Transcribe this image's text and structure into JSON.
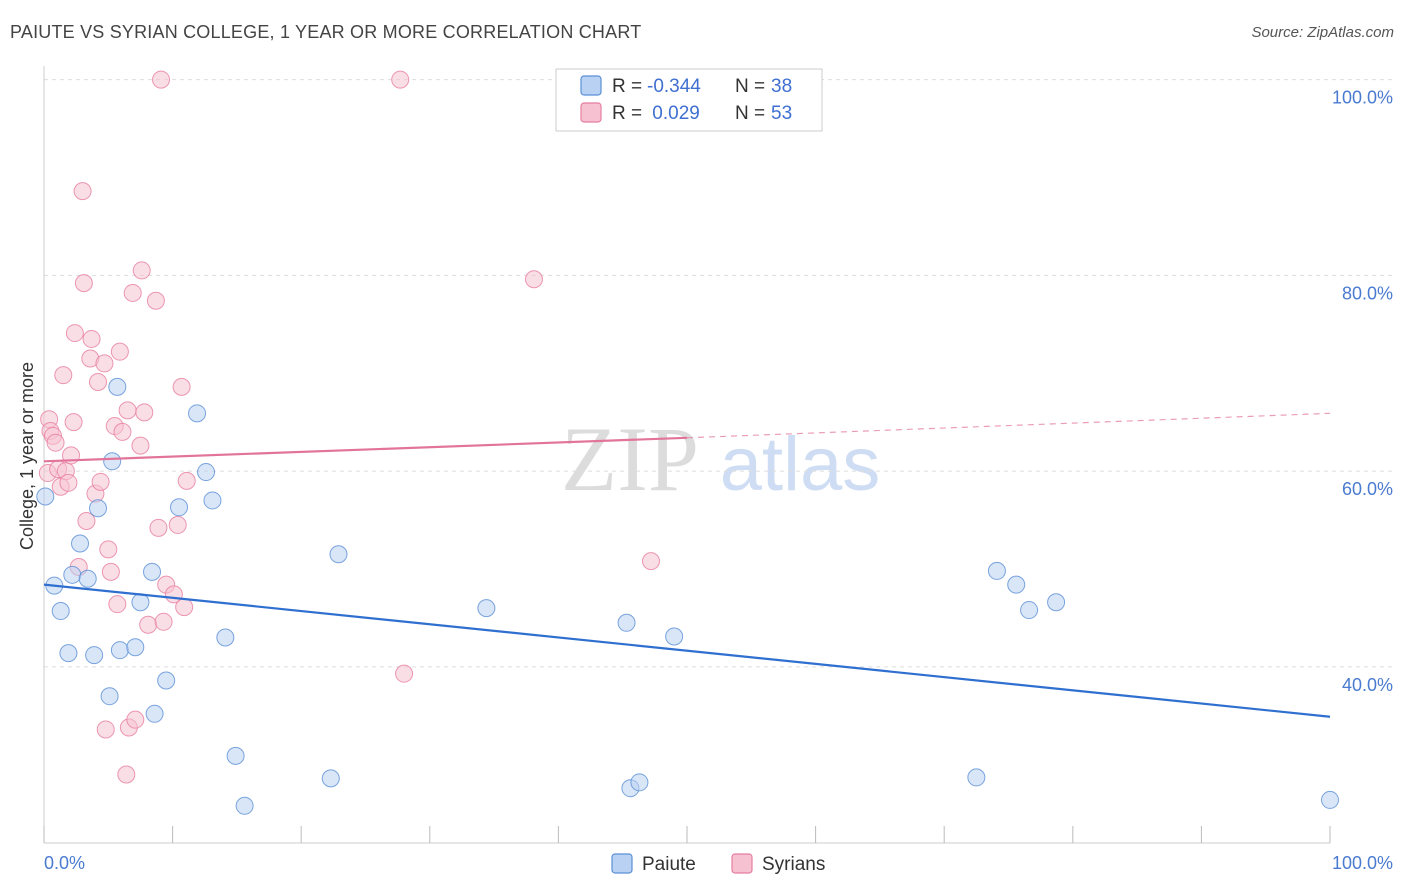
{
  "title": "PAIUTE VS SYRIAN COLLEGE, 1 YEAR OR MORE CORRELATION CHART",
  "source": "Source: ZipAtlas.com",
  "watermark": {
    "zip": "ZIP",
    "atlas": "atlas"
  },
  "colors": {
    "paiute": "#5b8fd6",
    "paiute_fill": "#b9d2f3",
    "syrians": "#e77ea0",
    "syrians_fill": "#f6c2d2",
    "blue_line": "#2f6fcf",
    "pink_line": "#e2739a"
  },
  "legend": {
    "rows": [
      {
        "r_label": "R = ",
        "r_value": "-0.344",
        "n_label": "N = ",
        "n_value": "38",
        "series": "paiute"
      },
      {
        "r_label": "R = ",
        "r_value": " 0.029",
        "n_label": "N = ",
        "n_value": "53",
        "series": "syrians"
      }
    ]
  },
  "chart_data": {
    "type": "scatter",
    "ylabel": "College, 1 year or more",
    "xlim": [
      0,
      100
    ],
    "ylim": [
      22,
      102
    ],
    "x_tick_labels": [
      {
        "value": 0,
        "label": "0.0%"
      },
      {
        "value": 100,
        "label": "100.0%"
      }
    ],
    "y_tick_labels": [
      {
        "value": 100,
        "label": "100.0%"
      },
      {
        "value": 80,
        "label": "80.0%"
      },
      {
        "value": 60,
        "label": "60.0%"
      },
      {
        "value": 40,
        "label": "40.0%"
      }
    ],
    "y_grid": [
      100,
      80,
      60,
      40
    ],
    "legend_position": "bottom",
    "series": [
      {
        "name": "Paiute",
        "points": [
          [
            0.1,
            57.4
          ],
          [
            0.8,
            48.3
          ],
          [
            1.3,
            45.7
          ],
          [
            1.9,
            41.4
          ],
          [
            2.2,
            49.4
          ],
          [
            2.8,
            52.6
          ],
          [
            3.4,
            49.0
          ],
          [
            3.9,
            41.2
          ],
          [
            5.1,
            37.0
          ],
          [
            5.9,
            41.7
          ],
          [
            5.7,
            68.6
          ],
          [
            7.1,
            42.0
          ],
          [
            5.3,
            61.0
          ],
          [
            4.2,
            56.2
          ],
          [
            7.5,
            46.6
          ],
          [
            8.4,
            49.7
          ],
          [
            8.6,
            35.2
          ],
          [
            9.5,
            38.6
          ],
          [
            10.5,
            56.3
          ],
          [
            11.9,
            65.9
          ],
          [
            12.6,
            59.9
          ],
          [
            13.1,
            57.0
          ],
          [
            14.1,
            43.0
          ],
          [
            14.9,
            30.9
          ],
          [
            15.6,
            25.8
          ],
          [
            22.3,
            28.6
          ],
          [
            22.9,
            51.5
          ],
          [
            34.4,
            46.0
          ],
          [
            45.3,
            44.5
          ],
          [
            45.6,
            27.6
          ],
          [
            46.3,
            28.2
          ],
          [
            49.0,
            43.1
          ],
          [
            72.5,
            28.7
          ],
          [
            74.1,
            49.8
          ],
          [
            75.6,
            48.4
          ],
          [
            76.6,
            45.8
          ],
          [
            78.7,
            46.6
          ],
          [
            100.0,
            26.4
          ]
        ],
        "trend": {
          "x": [
            0,
            100
          ],
          "y": [
            48.4,
            34.9
          ],
          "style": "solid"
        }
      },
      {
        "name": "Syrians",
        "points": [
          [
            0.3,
            59.8
          ],
          [
            0.4,
            65.3
          ],
          [
            0.5,
            64.1
          ],
          [
            0.7,
            63.6
          ],
          [
            0.9,
            62.9
          ],
          [
            1.1,
            60.2
          ],
          [
            1.3,
            58.4
          ],
          [
            1.5,
            69.8
          ],
          [
            1.7,
            60.0
          ],
          [
            1.9,
            58.8
          ],
          [
            2.1,
            61.6
          ],
          [
            2.3,
            65.0
          ],
          [
            2.4,
            74.1
          ],
          [
            2.7,
            50.2
          ],
          [
            3.0,
            88.6
          ],
          [
            3.1,
            79.2
          ],
          [
            3.3,
            54.9
          ],
          [
            3.6,
            71.5
          ],
          [
            3.7,
            73.5
          ],
          [
            4.0,
            57.7
          ],
          [
            4.2,
            69.1
          ],
          [
            4.4,
            58.9
          ],
          [
            4.7,
            71.0
          ],
          [
            4.8,
            33.6
          ],
          [
            5.0,
            52.0
          ],
          [
            5.2,
            49.7
          ],
          [
            5.5,
            64.6
          ],
          [
            5.7,
            46.4
          ],
          [
            5.9,
            72.2
          ],
          [
            6.1,
            64.0
          ],
          [
            6.4,
            29.0
          ],
          [
            6.5,
            66.2
          ],
          [
            6.6,
            33.8
          ],
          [
            6.9,
            78.2
          ],
          [
            7.1,
            34.6
          ],
          [
            7.5,
            62.6
          ],
          [
            7.6,
            80.5
          ],
          [
            7.8,
            66.0
          ],
          [
            8.1,
            44.3
          ],
          [
            8.7,
            77.4
          ],
          [
            8.9,
            54.2
          ],
          [
            9.1,
            100.0
          ],
          [
            9.3,
            44.6
          ],
          [
            9.5,
            48.4
          ],
          [
            10.1,
            47.4
          ],
          [
            10.4,
            54.5
          ],
          [
            10.7,
            68.6
          ],
          [
            10.9,
            46.1
          ],
          [
            11.1,
            59.0
          ],
          [
            27.7,
            100.0
          ],
          [
            28.0,
            39.3
          ],
          [
            38.1,
            79.6
          ],
          [
            47.2,
            50.8
          ]
        ],
        "trend": {
          "x": [
            0,
            50,
            100
          ],
          "y": [
            61.0,
            63.4,
            65.9
          ],
          "style": "solid-then-dashed"
        }
      }
    ]
  },
  "bottom_legend": [
    {
      "label": "Paiute",
      "series": "paiute"
    },
    {
      "label": "Syrians",
      "series": "syrians"
    }
  ]
}
